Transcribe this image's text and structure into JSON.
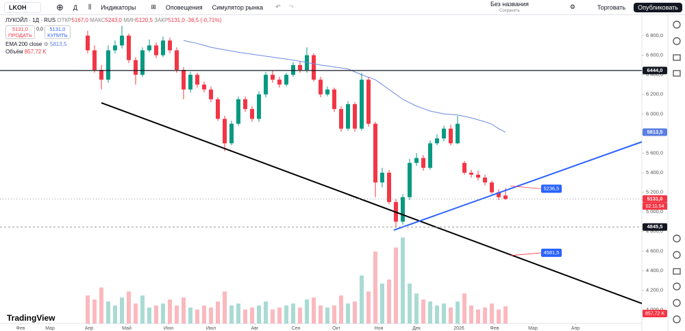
{
  "toolbar": {
    "symbol": "LKOH",
    "interval": "Д",
    "indicators": "Индикаторы",
    "alerts": "Оповещения",
    "replay": "Симулятор рынка",
    "layout_name": "Без названия",
    "layout_status": "Сохранить",
    "trade": "Торговать",
    "publish": "Опубликовать"
  },
  "legend": {
    "title": "ЛУКОЙЛ · 1Д · RUS",
    "open_label": "ОТКР",
    "open": "5167,0",
    "high_label": "МАКС",
    "high": "5243,0",
    "low_label": "МИН",
    "low": "5120,5",
    "close_label": "ЗАКР",
    "close": "5131,0",
    "change": "-36,5 (-0,71%)",
    "sell_price": "5131,0",
    "sell": "ПРОДАТЬ",
    "spread": "0,0",
    "buy_price": "5131,0",
    "buy": "КУПИТЬ",
    "ema_name": "EMA 200 close",
    "ema_value": "5813,5",
    "volume_name": "Объём",
    "volume_value": "857,72 K"
  },
  "logo": "TradingView",
  "countdown": "02:11:54",
  "chart_data": {
    "type": "candlestick",
    "up_color": "#089981",
    "down_color": "#f23645",
    "xlim": [
      -12.3,
      80.9
    ],
    "xticks": [
      {
        "value": -9.8,
        "label": "Фев"
      },
      {
        "value": -5.5,
        "label": "Мар"
      },
      {
        "value": 0.2,
        "label": "Апр"
      },
      {
        "value": 5.7,
        "label": "Май"
      },
      {
        "value": 11.8,
        "label": "Июн"
      },
      {
        "value": 18,
        "label": "Июл"
      },
      {
        "value": 24.4,
        "label": "Авг"
      },
      {
        "value": 30.4,
        "label": "Сен"
      },
      {
        "value": 36.3,
        "label": "Окт"
      },
      {
        "value": 42.5,
        "label": "Ноя"
      },
      {
        "value": 48,
        "label": "Дек"
      },
      {
        "value": 54.2,
        "label": "2026"
      },
      {
        "value": 59.4,
        "label": "Фев"
      },
      {
        "value": 65,
        "label": "Мар"
      },
      {
        "value": 71.2,
        "label": "Апр"
      }
    ],
    "ylim": [
      3860,
      7010
    ],
    "yticks": [
      {
        "value": 6800,
        "label": "6 800,0"
      },
      {
        "value": 6600,
        "label": "6 600,0"
      },
      {
        "value": 6400,
        "label": "6 400,0"
      },
      {
        "value": 6200,
        "label": "6 200,0"
      },
      {
        "value": 6000,
        "label": "6 000,0"
      },
      {
        "value": 5800,
        "label": "5 800,0"
      },
      {
        "value": 5600,
        "label": "5 600,0"
      },
      {
        "value": 5400,
        "label": "5 400,0"
      },
      {
        "value": 5200,
        "label": "5 200,0"
      },
      {
        "value": 5000,
        "label": "5 000,0"
      },
      {
        "value": 4800,
        "label": "4 800,0"
      },
      {
        "value": 4600,
        "label": "4 600,0"
      },
      {
        "value": 4400,
        "label": "4 400,0"
      },
      {
        "value": 4200,
        "label": "4 200,0"
      },
      {
        "value": 4000,
        "label": "4 000,0"
      }
    ],
    "open": [
      6800,
      6650,
      6450,
      6350,
      6650,
      6700,
      6800,
      6550,
      6400,
      6650,
      6700,
      6600,
      6750,
      6650,
      6450,
      6250,
      6400,
      6300,
      6250,
      6150,
      5950,
      5700,
      5900,
      6150,
      6050,
      5950,
      6200,
      6400,
      6350,
      6300,
      6400,
      6500,
      6450,
      6600,
      6350,
      6200,
      6250,
      6050,
      5850,
      6100,
      5850,
      6350,
      5900,
      5300,
      5400,
      5100,
      4900,
      5150,
      5500,
      5550,
      5450,
      5700,
      5750,
      5850,
      5700,
      5500,
      5400,
      5380,
      5350,
      5300,
      5200,
      5167
    ],
    "high": [
      6850,
      6700,
      6500,
      6700,
      6750,
      6900,
      6820,
      6580,
      6680,
      6760,
      6730,
      6790,
      6780,
      6680,
      6480,
      6430,
      6420,
      6330,
      6280,
      6170,
      5980,
      5930,
      6180,
      6180,
      6080,
      6230,
      6430,
      6440,
      6380,
      6420,
      6530,
      6540,
      6680,
      6620,
      6380,
      6280,
      6270,
      6080,
      6130,
      6120,
      6420,
      6380,
      5920,
      5450,
      5430,
      5130,
      5180,
      5540,
      5600,
      5580,
      5730,
      5790,
      5880,
      5890,
      5980,
      5520,
      5430,
      5420,
      5380,
      5320,
      5230,
      5243
    ],
    "low": [
      6620,
      6420,
      6250,
      6320,
      6620,
      6670,
      6520,
      6300,
      6380,
      6630,
      6570,
      6580,
      6620,
      6420,
      6150,
      6220,
      6270,
      6220,
      6120,
      5930,
      5620,
      5680,
      5880,
      6020,
      5920,
      5920,
      6170,
      6320,
      6270,
      6280,
      6380,
      6420,
      6420,
      6330,
      6170,
      6180,
      6020,
      5820,
      5830,
      5820,
      5830,
      5870,
      5150,
      5250,
      5080,
      4840,
      4870,
      5120,
      5470,
      5420,
      5430,
      5680,
      5720,
      5680,
      5690,
      5380,
      5350,
      5320,
      5270,
      5180,
      5120,
      5120.5
    ],
    "close": [
      6650,
      6450,
      6350,
      6650,
      6700,
      6800,
      6550,
      6400,
      6650,
      6700,
      6600,
      6750,
      6650,
      6450,
      6250,
      6400,
      6300,
      6250,
      6150,
      5950,
      5700,
      5900,
      6150,
      6050,
      5950,
      6200,
      6400,
      6350,
      6300,
      6400,
      6500,
      6450,
      6600,
      6350,
      6200,
      6250,
      6050,
      5850,
      6100,
      5850,
      6350,
      5900,
      5300,
      5400,
      5100,
      4900,
      5150,
      5500,
      5550,
      5450,
      5700,
      5750,
      5850,
      5700,
      5900,
      5400,
      5380,
      5350,
      5300,
      5200,
      5150,
      5131
    ],
    "ema": {
      "color": "#6a8ae0",
      "values": [
        null,
        null,
        null,
        null,
        null,
        null,
        null,
        null,
        null,
        null,
        null,
        null,
        null,
        null,
        6750,
        6735,
        6720,
        6700,
        6680,
        6668,
        6655,
        6643,
        6630,
        6620,
        6610,
        6600,
        6590,
        6580,
        6570,
        6560,
        6550,
        6538,
        6525,
        6513,
        6500,
        6490,
        6480,
        6470,
        6460,
        6430,
        6400,
        6375,
        6350,
        6300,
        6250,
        6200,
        6150,
        6115,
        6080,
        6055,
        6030,
        6015,
        6000,
        5995,
        5990,
        5975,
        5960,
        5940,
        5920,
        5895,
        5850,
        5813.5
      ]
    },
    "volume": {
      "ylim": [
        0,
        4800
      ],
      "values": [
        1400,
        1200,
        1800,
        1100,
        900,
        1300,
        1600,
        1000,
        1400,
        800,
        900,
        1000,
        1200,
        900,
        1300,
        800,
        700,
        900,
        800,
        1100,
        1600,
        900,
        1000,
        700,
        800,
        900,
        1100,
        700,
        800,
        900,
        1000,
        800,
        1200,
        1300,
        900,
        800,
        900,
        1400,
        1000,
        1100,
        2400,
        1600,
        3600,
        2000,
        2200,
        3800,
        4300,
        2000,
        1500,
        1200,
        1100,
        900,
        1000,
        800,
        1100,
        1500,
        900,
        700,
        800,
        1000,
        700,
        857.72
      ]
    },
    "trendlines": [
      {
        "color": "#000000",
        "points": [
          [
            2,
            6114
          ],
          [
            80.9,
            4064
          ]
        ]
      },
      {
        "color": "#2962ff",
        "points": [
          [
            44.7,
            4813
          ],
          [
            80.9,
            5715
          ]
        ]
      }
    ],
    "price_labels": [
      {
        "value": 6444,
        "label": "6444,0",
        "color": "#131722",
        "line": "solid"
      },
      {
        "value": 5813.5,
        "label": "5813,5",
        "color": "#5b7fe0",
        "line": "none"
      },
      {
        "value": 5131,
        "label": "5131,0",
        "color": "#f23645",
        "line": "dotted"
      },
      {
        "value": 4845.5,
        "label": "4845,5",
        "color": "#131722",
        "line": "dashed"
      }
    ],
    "annotations": [
      {
        "value": 5236.5,
        "label": "5236,5",
        "color": "#2962ff"
      },
      {
        "value": 4581.5,
        "label": "4581,5",
        "color": "#2962ff"
      }
    ]
  }
}
